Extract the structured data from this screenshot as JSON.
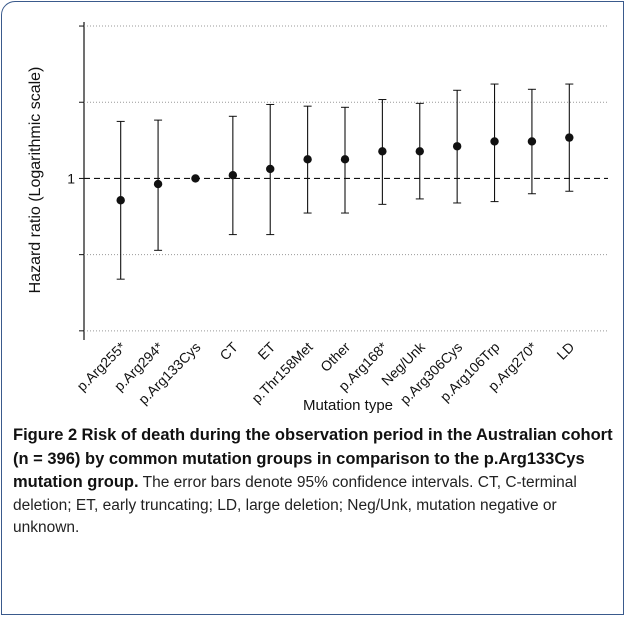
{
  "chart_data": {
    "type": "errorbar",
    "y_label": "Hazard ratio (Logarithmic scale)",
    "x_label": "Mutation type",
    "categories": [
      "p.Arg255*",
      "p.Arg294*",
      "p.Arg133Cys",
      "CT",
      "ET",
      "p.Thr158Met",
      "Other",
      "p.Arg168*",
      "Neg/Unk",
      "p.Arg306Cys",
      "p.Arg106Trp",
      "p.Arg270*",
      "LD"
    ],
    "values": [
      0.82,
      0.95,
      1,
      1.03,
      1.09,
      1.19,
      1.19,
      1.28,
      1.28,
      1.34,
      1.4,
      1.4,
      1.45
    ],
    "lower": [
      0.4,
      0.52,
      null,
      0.6,
      0.6,
      0.73,
      0.73,
      0.79,
      0.83,
      0.8,
      0.81,
      0.87,
      0.89
    ],
    "upper": [
      1.68,
      1.7,
      null,
      1.76,
      1.96,
      1.93,
      1.91,
      2.05,
      1.98,
      2.23,
      2.36,
      2.25,
      2.36
    ],
    "color": "#111111",
    "log_scale": true,
    "ylim": [
      0.23,
      4.15
    ],
    "yticks": [
      1
    ],
    "minor_ticks": [
      0.25,
      0.5,
      2,
      4
    ],
    "reference_line": 1
  },
  "caption": {
    "label": "Figure 2",
    "title": "Risk of death during the observation period in the Australian cohort (n = 396) by common mutation groups in comparison to the p.Arg133Cys mutation group.",
    "text": "The error bars denote 95% confidence intervals. CT, C-terminal deletion; ET, early truncating; LD, large deletion; Neg/Unk, mutation negative or unknown."
  }
}
